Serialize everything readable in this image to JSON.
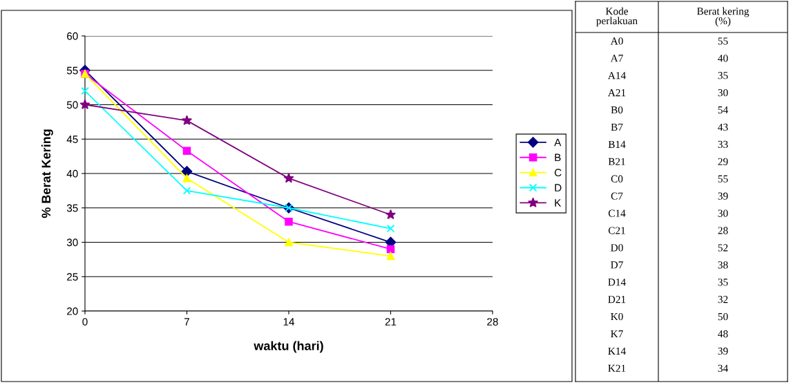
{
  "chart_data": [
    {
      "type": "line",
      "xlabel": "waktu (hari)",
      "ylabel": "% Berat Kering",
      "x": [
        0,
        7,
        14,
        21
      ],
      "xlim": [
        0,
        28
      ],
      "xticks": [
        0,
        7,
        14,
        21,
        28
      ],
      "ylim": [
        20,
        60
      ],
      "yticks": [
        20,
        25,
        30,
        35,
        40,
        45,
        50,
        55,
        60
      ],
      "grid": "y",
      "legend": "right",
      "line_style": "solid",
      "series": [
        {
          "name": "A",
          "color": "#000080",
          "marker": "diamond",
          "values": [
            55,
            40.3,
            35,
            30
          ]
        },
        {
          "name": "B",
          "color": "#ff00ff",
          "marker": "square",
          "values": [
            54.5,
            43.3,
            33,
            29
          ]
        },
        {
          "name": "C",
          "color": "#ffff00",
          "marker": "triangle",
          "values": [
            54.5,
            39.3,
            30,
            28
          ]
        },
        {
          "name": "D",
          "color": "#00ffff",
          "marker": "cross",
          "values": [
            52,
            37.5,
            35,
            32
          ]
        },
        {
          "name": "K",
          "color": "#800080",
          "marker": "star",
          "values": [
            50,
            47.7,
            39.3,
            34
          ]
        }
      ]
    },
    {
      "type": "other",
      "data_labels": true,
      "annotations": [
        "Kode perlakuan",
        "Berat kering (%)"
      ],
      "categories": [
        "A0",
        "A7",
        "A14",
        "A21",
        "B0",
        "B7",
        "B14",
        "B21",
        "C0",
        "C7",
        "C14",
        "C21",
        "D0",
        "D7",
        "D14",
        "D21",
        "K0",
        "K7",
        "K14",
        "K21"
      ],
      "values": [
        55,
        40,
        35,
        30,
        54,
        43,
        33,
        29,
        55,
        39,
        30,
        28,
        52,
        38,
        35,
        32,
        50,
        48,
        39,
        34
      ]
    }
  ]
}
